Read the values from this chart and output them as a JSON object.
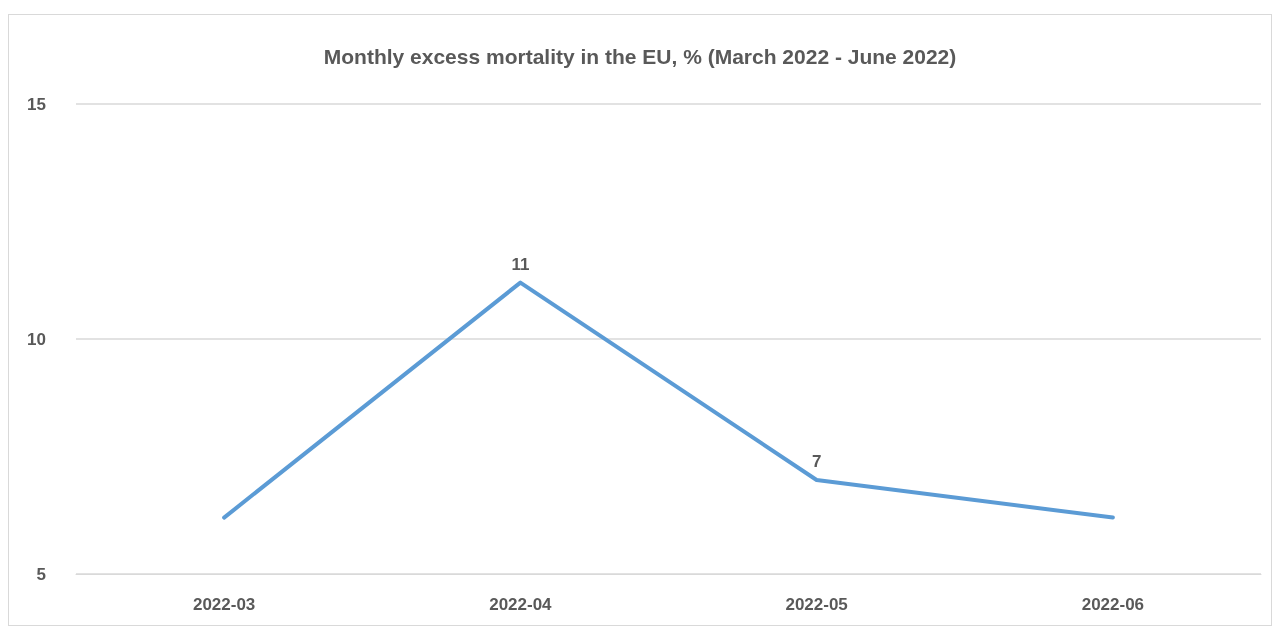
{
  "chart_data": {
    "type": "line",
    "title": "Monthly excess mortality in the EU, % (March 2022 - June 2022)",
    "categories": [
      "2022-03",
      "2022-04",
      "2022-05",
      "2022-06"
    ],
    "series": [
      {
        "color": "#5b9bd5",
        "values": [
          6.2,
          11.2,
          7,
          6.2
        ],
        "value_labels": [
          null,
          "11",
          "7",
          null
        ]
      }
    ],
    "ylim": [
      5,
      15
    ],
    "yticks": [
      5,
      10,
      15
    ],
    "grid": "y",
    "marker": "none",
    "line_style": "solid"
  }
}
